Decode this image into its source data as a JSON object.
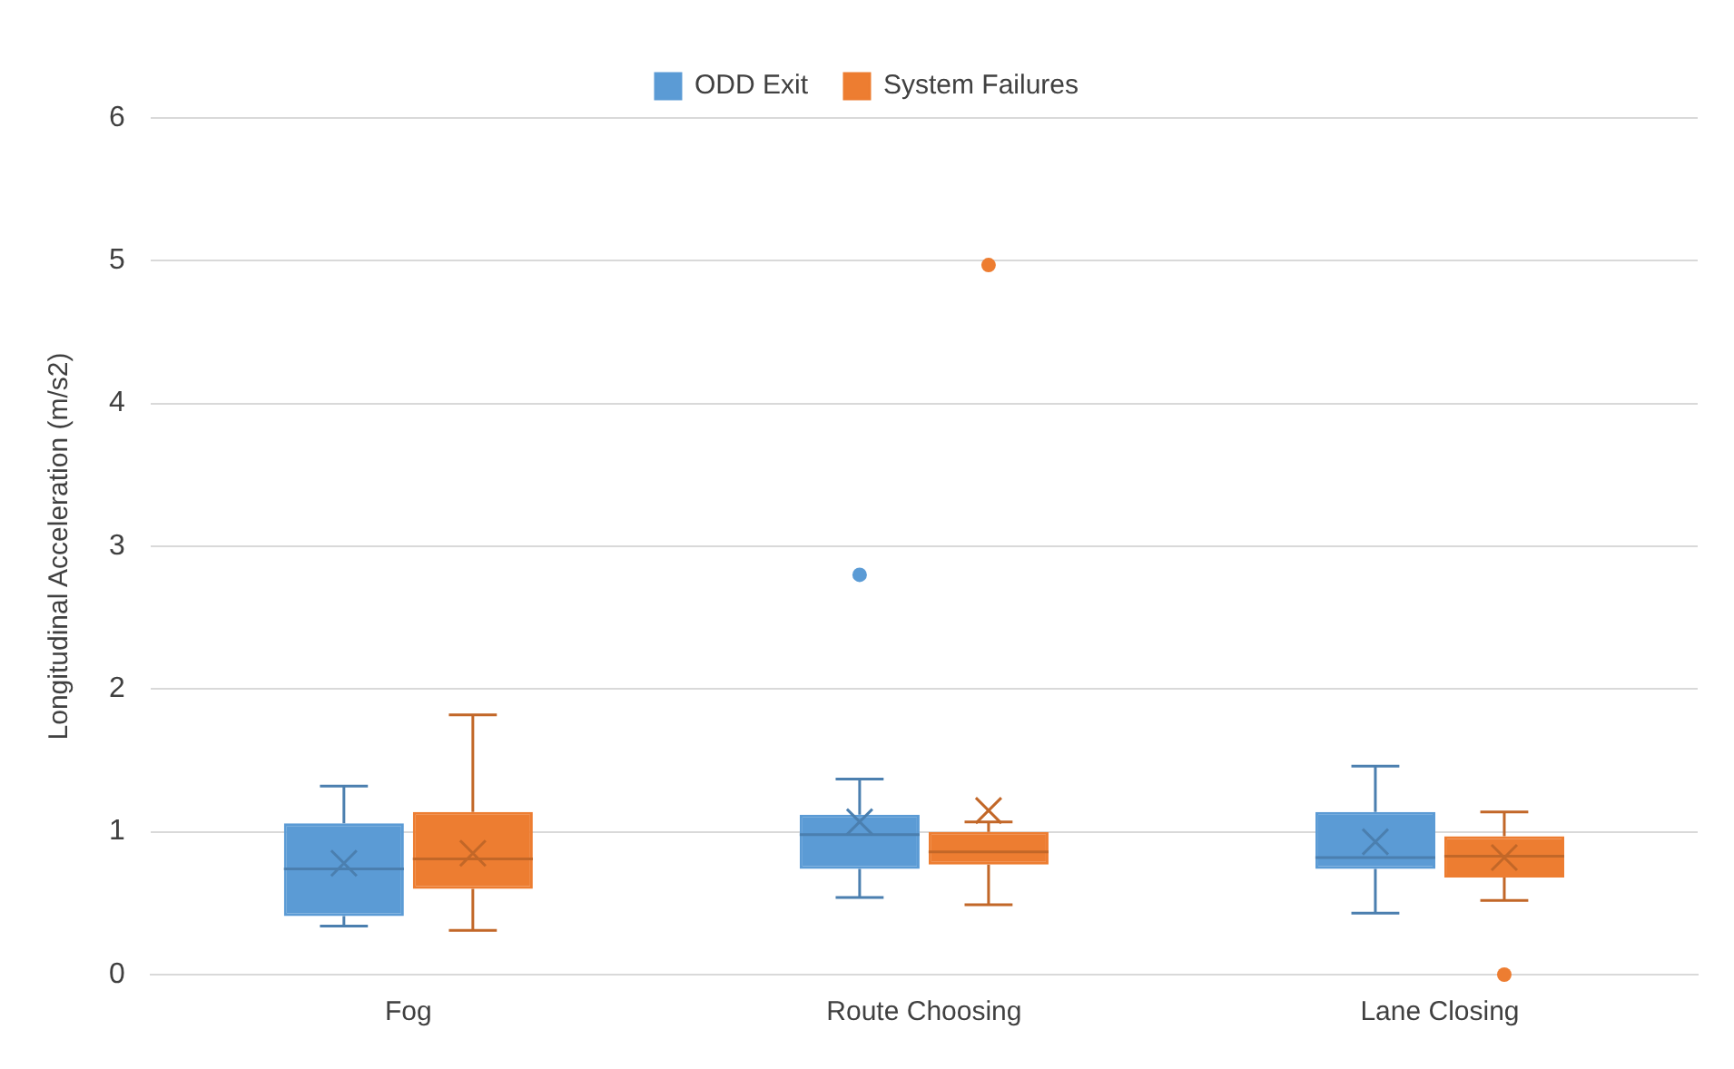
{
  "chart_data": {
    "type": "box",
    "ylabel": "Longitudinal Acceleration (m/s2)",
    "categories": [
      "Fog",
      "Route Choosing",
      "Lane Closing"
    ],
    "series": [
      {
        "name": "ODD Exit",
        "color": "#5b9bd5",
        "boxes": [
          {
            "low": 0.34,
            "q1": 0.41,
            "median": 0.74,
            "q3": 1.06,
            "high": 1.32,
            "mean": 0.78
          },
          {
            "low": 0.54,
            "q1": 0.74,
            "median": 0.98,
            "q3": 1.12,
            "high": 1.37,
            "mean": 1.07,
            "outliers": [
              2.8
            ]
          },
          {
            "low": 0.43,
            "q1": 0.74,
            "median": 0.82,
            "q3": 1.14,
            "high": 1.46,
            "mean": 0.93
          }
        ]
      },
      {
        "name": "System Failures",
        "color": "#ed7d31",
        "boxes": [
          {
            "low": 0.31,
            "q1": 0.6,
            "median": 0.81,
            "q3": 1.14,
            "high": 1.82,
            "mean": 0.85
          },
          {
            "low": 0.49,
            "q1": 0.77,
            "median": 0.86,
            "q3": 1.0,
            "high": 1.07,
            "mean": 1.15,
            "outliers": [
              4.97
            ]
          },
          {
            "low": 0.52,
            "q1": 0.68,
            "median": 0.83,
            "q3": 0.97,
            "high": 1.14,
            "mean": 0.82,
            "outliers": [
              0
            ]
          }
        ]
      }
    ],
    "ylim": [
      0,
      6
    ],
    "yticks": [
      0,
      1,
      2,
      3,
      4,
      5,
      6
    ],
    "grid": "y",
    "legend": "top",
    "marker": "circle"
  }
}
